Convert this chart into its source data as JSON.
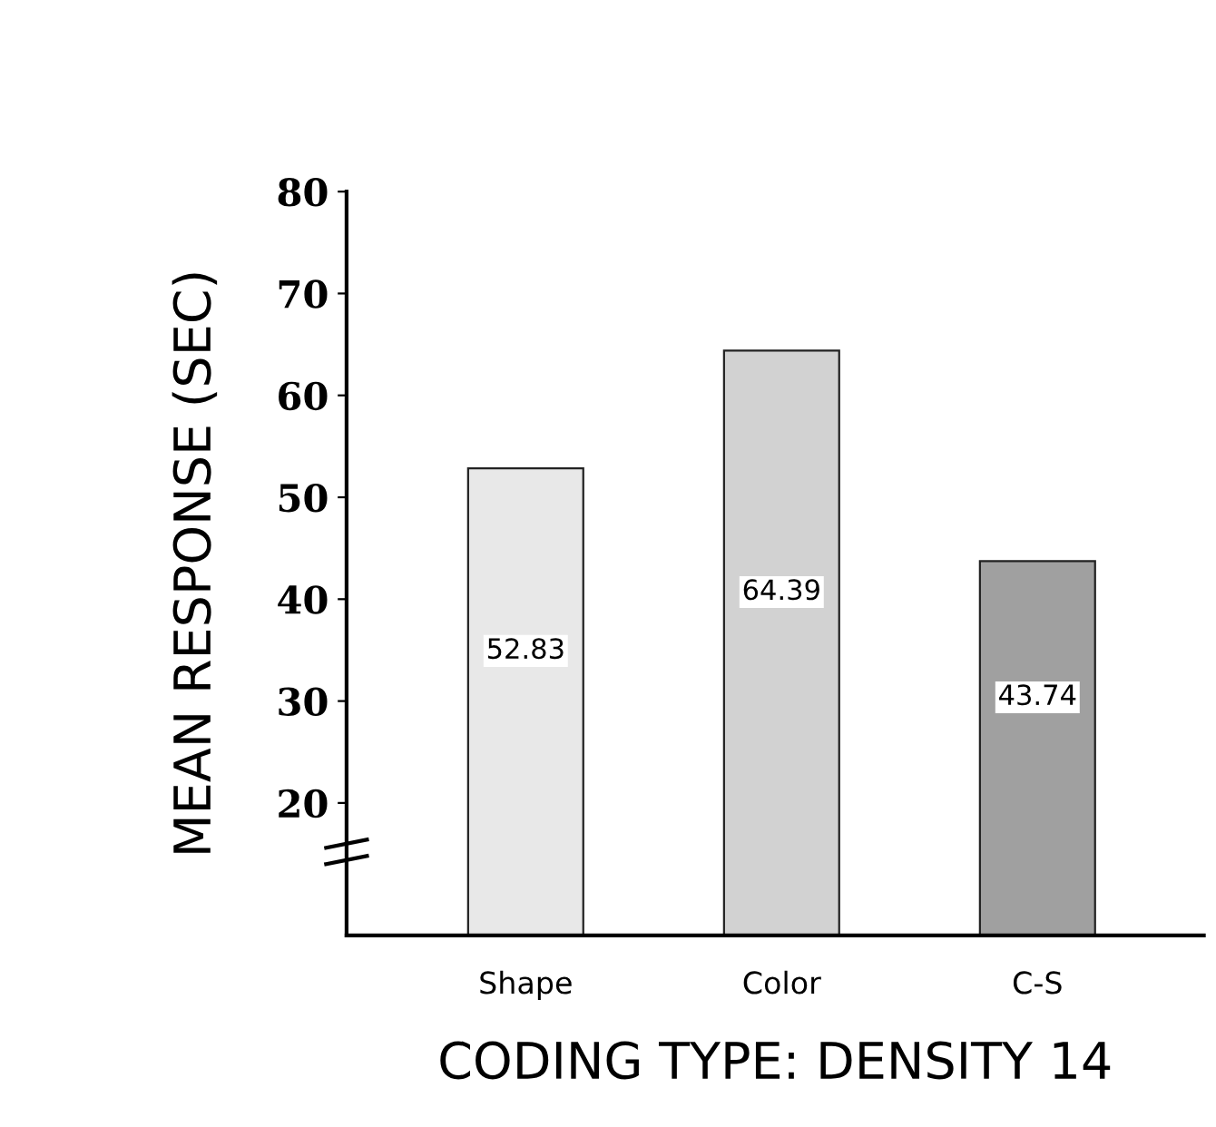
{
  "chart_data": {
    "type": "bar",
    "xlabel": "CODING TYPE: DENSITY 14",
    "ylabel": "MEAN RESPONSE (SEC)",
    "categories": [
      "Shape",
      "Color",
      "C-S"
    ],
    "values": [
      52.83,
      64.39,
      43.74
    ],
    "colors": [
      "#e8e8e8",
      "#d2d2d2",
      "#a0a0a0"
    ],
    "ylim": [
      7,
      80
    ],
    "yticks": [
      20,
      30,
      40,
      50,
      60,
      70,
      80
    ],
    "data_labels": true,
    "grid": false,
    "legend": false
  }
}
